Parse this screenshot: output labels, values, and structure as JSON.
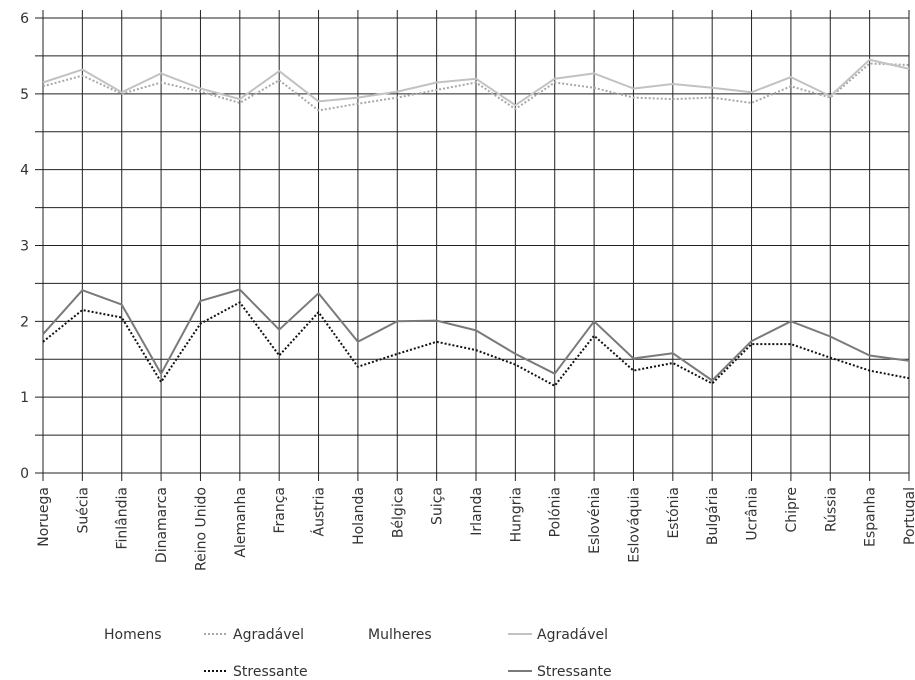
{
  "chart_data": {
    "type": "line",
    "title": "",
    "xlabel": "",
    "ylabel": "",
    "ylim": [
      0,
      6
    ],
    "yticks": [
      0,
      1,
      2,
      3,
      4,
      5,
      6
    ],
    "grid": true,
    "legend_position": "bottom",
    "categories": [
      "Noruega",
      "Suécia",
      "Finlândia",
      "Dinamarca",
      "Reino Unido",
      "Alemanha",
      "França",
      "Áustria",
      "Holanda",
      "Bélgica",
      "Suiça",
      "Irlanda",
      "Hungria",
      "Polónia",
      "Eslovénia",
      "Eslováquia",
      "Estónia",
      "Bulgária",
      "Ucrânia",
      "Chipre",
      "Rússia",
      "Espanha",
      "Portugal"
    ],
    "legend": {
      "group_men": "Homens",
      "group_women": "Mulheres"
    },
    "series": [
      {
        "name": "Agradável",
        "group": "Homens",
        "style": "dotted",
        "color": "#a8a8a8",
        "values": [
          5.1,
          5.24,
          5.0,
          5.15,
          5.03,
          4.88,
          5.18,
          4.78,
          4.87,
          4.95,
          5.05,
          5.15,
          4.8,
          5.15,
          5.08,
          4.95,
          4.93,
          4.95,
          4.88,
          5.1,
          4.95,
          5.4,
          5.38
        ]
      },
      {
        "name": "Stressante",
        "group": "Homens",
        "style": "dotted",
        "color": "#111111",
        "values": [
          1.73,
          2.15,
          2.05,
          1.2,
          1.97,
          2.25,
          1.55,
          2.12,
          1.4,
          1.57,
          1.73,
          1.62,
          1.43,
          1.15,
          1.81,
          1.35,
          1.45,
          1.18,
          1.7,
          1.7,
          1.52,
          1.35,
          1.25
        ]
      },
      {
        "name": "Agradável",
        "group": "Mulheres",
        "style": "solid",
        "color": "#c2c2c2",
        "values": [
          5.15,
          5.32,
          5.02,
          5.27,
          5.07,
          4.93,
          5.3,
          4.9,
          4.95,
          5.03,
          5.15,
          5.2,
          4.85,
          5.2,
          5.27,
          5.07,
          5.13,
          5.08,
          5.02,
          5.22,
          4.97,
          5.45,
          5.33
        ]
      },
      {
        "name": "Stressante",
        "group": "Mulheres",
        "style": "solid",
        "color": "#7a7a7a",
        "values": [
          1.83,
          2.41,
          2.22,
          1.31,
          2.27,
          2.42,
          1.89,
          2.37,
          1.73,
          2.0,
          2.01,
          1.88,
          1.57,
          1.31,
          2.0,
          1.51,
          1.58,
          1.22,
          1.74,
          2.0,
          1.8,
          1.55,
          1.48
        ]
      }
    ]
  }
}
